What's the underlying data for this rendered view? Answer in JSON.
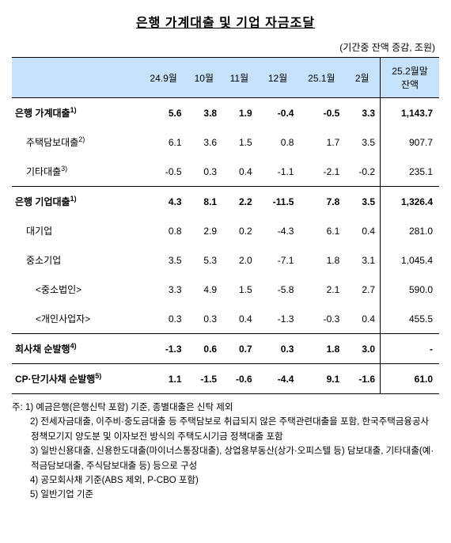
{
  "title": "은행 가계대출 및 기업 자금조달",
  "unit_label": "(기간중 잔액 증감, 조원)",
  "columns": [
    "",
    "24.9월",
    "10월",
    "11월",
    "12월",
    "25.1월",
    "2월",
    "25.2월말\n잔액"
  ],
  "rows": [
    {
      "label": "은행 가계대출",
      "sup": "1)",
      "section": true,
      "indent": 0,
      "values": [
        "5.6",
        "3.8",
        "1.9",
        "-0.4",
        "-0.5",
        "3.3",
        "1,143.7"
      ]
    },
    {
      "label": "주택담보대출",
      "sup": "2)",
      "section": false,
      "indent": 1,
      "values": [
        "6.1",
        "3.6",
        "1.5",
        "0.8",
        "1.7",
        "3.5",
        "907.7"
      ]
    },
    {
      "label": "기타대출",
      "sup": "3)",
      "section": false,
      "indent": 1,
      "values": [
        "-0.5",
        "0.3",
        "0.4",
        "-1.1",
        "-2.1",
        "-0.2",
        "235.1"
      ]
    },
    {
      "label": "은행 기업대출",
      "sup": "1)",
      "section": true,
      "indent": 0,
      "values": [
        "4.3",
        "8.1",
        "2.2",
        "-11.5",
        "7.8",
        "3.5",
        "1,326.4"
      ]
    },
    {
      "label": "대기업",
      "sup": "",
      "section": false,
      "indent": 1,
      "values": [
        "0.8",
        "2.9",
        "0.2",
        "-4.3",
        "6.1",
        "0.4",
        "281.0"
      ]
    },
    {
      "label": "중소기업",
      "sup": "",
      "section": false,
      "indent": 1,
      "values": [
        "3.5",
        "5.3",
        "2.0",
        "-7.1",
        "1.8",
        "3.1",
        "1,045.4"
      ]
    },
    {
      "label": "<중소법인>",
      "sup": "",
      "section": false,
      "indent": 2,
      "values": [
        "3.3",
        "4.9",
        "1.5",
        "-5.8",
        "2.1",
        "2.7",
        "590.0"
      ]
    },
    {
      "label": "<개인사업자>",
      "sup": "",
      "section": false,
      "indent": 2,
      "values": [
        "0.3",
        "0.3",
        "0.4",
        "-1.3",
        "-0.3",
        "0.4",
        "455.5"
      ]
    },
    {
      "label": "회사채 순발행",
      "sup": "4)",
      "section": true,
      "indent": 0,
      "values": [
        "-1.3",
        "0.6",
        "0.7",
        "0.3",
        "1.8",
        "3.0",
        "-"
      ]
    },
    {
      "label": "CP·단기사채 순발행",
      "sup": "5)",
      "section": true,
      "indent": 0,
      "last_row": true,
      "values": [
        "1.1",
        "-1.5",
        "-0.6",
        "-4.4",
        "9.1",
        "-1.6",
        "61.0"
      ]
    }
  ],
  "footnotes": [
    "주: 1) 예금은행(은행신탁 포함) 기준, 종별대출은 신탁 제외",
    "　　2) 전세자금대출, 이주비·중도금대출 등 주택담보로 취급되지 않은 주택관련대출을 포함, 한국주택금융공사 정책모기지 양도분 및 이자보전 방식의 주택도시기금 정책대출 포함",
    "　　3) 일반신용대출, 신용한도대출(마이너스통장대출), 상업용부동산(상가·오피스텔 등) 담보대출, 기타대출(예·적금담보대출, 주식담보대출 등) 등으로 구성",
    "　　4) 공모회사채 기준(ABS 제외, P-CBO 포함)",
    "　　5) 일반기업 기준"
  ]
}
